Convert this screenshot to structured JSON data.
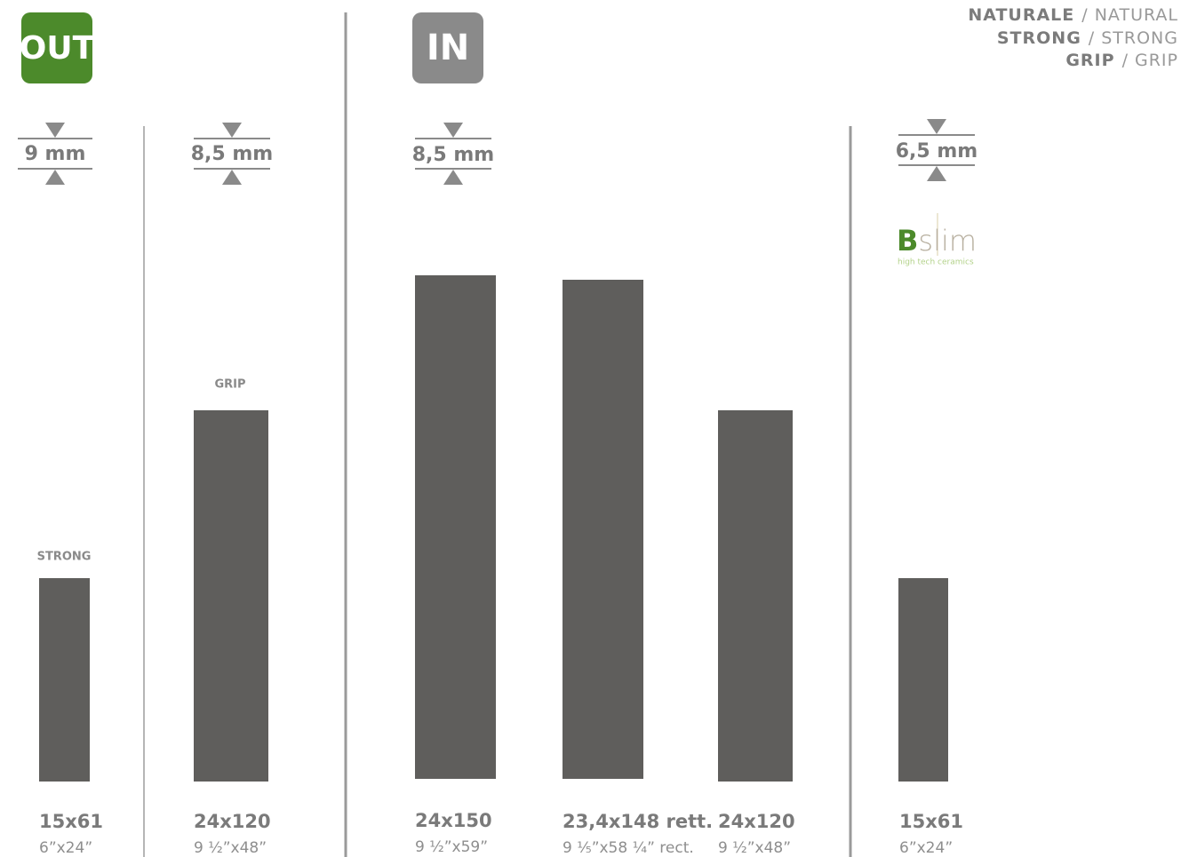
{
  "badges": {
    "out": "OUT",
    "in": "IN"
  },
  "legend": [
    {
      "bold": "NATURALE",
      "light": "/ NATURAL"
    },
    {
      "bold": "STRONG",
      "light": "/ STRONG"
    },
    {
      "bold": "GRIP",
      "light": "/ GRIP"
    }
  ],
  "thickness": [
    "9 mm",
    "8,5 mm",
    "8,5 mm",
    "6,5 mm"
  ],
  "finishes": [
    "STRONG",
    "GRIP"
  ],
  "logo": {
    "initial": "B",
    "name": "slim",
    "tagline": "high tech ceramics"
  },
  "tiles": [
    {
      "size": "15x61",
      "inch": "6”x24”"
    },
    {
      "size": "24x120",
      "inch": "9 ½”x48”"
    },
    {
      "size": "24x150",
      "inch": "9 ½”x59”"
    },
    {
      "size": "23,4x148 rett.",
      "inch": "9 ¹⁄₅”x58 ¼” rect."
    },
    {
      "size": "24x120",
      "inch": "9 ½”x48”"
    },
    {
      "size": "15x61",
      "inch": "6”x24”"
    }
  ]
}
